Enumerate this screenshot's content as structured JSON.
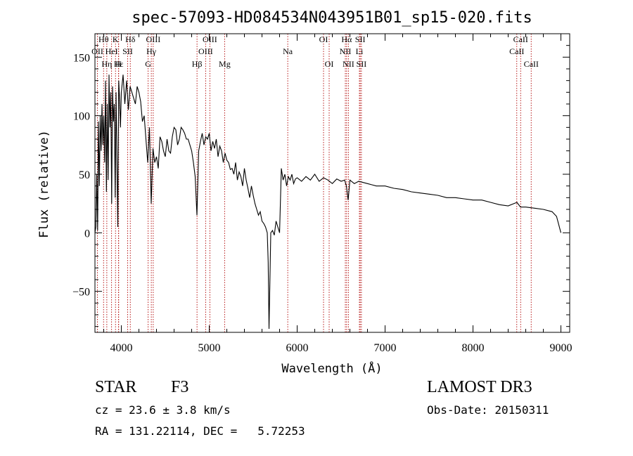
{
  "chart_data": {
    "type": "line",
    "title": "spec-57093-HD084534N043951B01_sp15-020.fits",
    "xlabel": "Wavelength (Å)",
    "ylabel": "Flux (relative)",
    "xlim": [
      3700,
      9100
    ],
    "ylim": [
      -85,
      170
    ],
    "x_ticks": [
      4000,
      5000,
      6000,
      7000,
      8000,
      9000
    ],
    "y_ticks": [
      -50,
      0,
      50,
      100,
      150
    ],
    "x_tick_labels": [
      "4000",
      "5000",
      "6000",
      "7000",
      "8000",
      "9000"
    ],
    "y_tick_labels": [
      "−50",
      "0",
      "50",
      "100",
      "150"
    ],
    "series": [
      {
        "x": [
          3700,
          3710,
          3720,
          3730,
          3740,
          3750,
          3760,
          3770,
          3780,
          3790,
          3800,
          3810,
          3820,
          3830,
          3840,
          3850,
          3860,
          3870,
          3880,
          3890,
          3900,
          3910,
          3920,
          3930,
          3940,
          3950,
          3960,
          3970,
          3980,
          3990,
          4000,
          4020,
          4040,
          4060,
          4080,
          4100,
          4120,
          4140,
          4160,
          4180,
          4200,
          4220,
          4240,
          4260,
          4280,
          4300,
          4320,
          4340,
          4360,
          4380,
          4400,
          4420,
          4440,
          4460,
          4480,
          4500,
          4520,
          4540,
          4560,
          4580,
          4600,
          4620,
          4640,
          4660,
          4680,
          4700,
          4720,
          4740,
          4760,
          4780,
          4800,
          4820,
          4840,
          4860,
          4880,
          4900,
          4920,
          4940,
          4960,
          4980,
          5000,
          5020,
          5040,
          5060,
          5080,
          5100,
          5120,
          5140,
          5160,
          5180,
          5200,
          5220,
          5240,
          5260,
          5280,
          5300,
          5320,
          5340,
          5360,
          5380,
          5400,
          5420,
          5440,
          5460,
          5480,
          5500,
          5520,
          5540,
          5560,
          5580,
          5600,
          5620,
          5640,
          5660,
          5670,
          5680,
          5690,
          5700,
          5720,
          5740,
          5760,
          5780,
          5800,
          5820,
          5840,
          5860,
          5880,
          5900,
          5920,
          5940,
          5960,
          5980,
          6000,
          6050,
          6100,
          6150,
          6200,
          6250,
          6300,
          6350,
          6400,
          6450,
          6500,
          6540,
          6560,
          6580,
          6600,
          6650,
          6700,
          6750,
          6800,
          6850,
          6900,
          6950,
          7000,
          7100,
          7200,
          7300,
          7400,
          7500,
          7600,
          7700,
          7800,
          7900,
          8000,
          8100,
          8200,
          8300,
          8400,
          8500,
          8540,
          8600,
          8700,
          8800,
          8900,
          8950,
          9000
        ],
        "y": [
          0,
          5,
          50,
          2,
          95,
          40,
          100,
          70,
          110,
          75,
          100,
          60,
          130,
          35,
          110,
          45,
          135,
          90,
          120,
          25,
          125,
          95,
          110,
          30,
          120,
          60,
          5,
          130,
          115,
          90,
          120,
          135,
          110,
          130,
          105,
          125,
          120,
          115,
          110,
          125,
          120,
          112,
          95,
          100,
          80,
          60,
          90,
          25,
          72,
          60,
          65,
          55,
          82,
          78,
          70,
          65,
          80,
          70,
          68,
          82,
          90,
          88,
          75,
          80,
          90,
          88,
          85,
          80,
          80,
          75,
          70,
          60,
          48,
          15,
          70,
          78,
          85,
          75,
          82,
          80,
          85,
          70,
          78,
          72,
          80,
          65,
          74,
          70,
          60,
          68,
          62,
          60,
          54,
          55,
          50,
          60,
          45,
          52,
          48,
          40,
          55,
          45,
          38,
          30,
          40,
          32,
          25,
          20,
          15,
          18,
          10,
          8,
          5,
          0,
          -25,
          -82,
          -40,
          0,
          2,
          -2,
          10,
          5,
          0,
          55,
          45,
          50,
          40,
          48,
          45,
          50,
          42,
          46,
          47,
          44,
          48,
          45,
          50,
          44,
          47,
          45,
          42,
          46,
          44,
          45,
          40,
          28,
          45,
          42,
          44,
          43,
          42,
          41,
          40,
          40,
          40,
          38,
          37,
          35,
          34,
          33,
          32,
          30,
          30,
          29,
          28,
          28,
          26,
          24,
          23,
          26,
          22,
          22,
          21,
          20,
          18,
          14,
          0
        ]
      }
    ],
    "lines": [
      {
        "label": "Hθ",
        "x": 3798,
        "row": 0
      },
      {
        "label": "OII",
        "x": 3728,
        "row": 1
      },
      {
        "label": "Hη",
        "x": 3835,
        "row": 2
      },
      {
        "label": "K",
        "x": 3934,
        "row": 0
      },
      {
        "label": "HeI",
        "x": 3889,
        "row": 1
      },
      {
        "label": "Hε",
        "x": 3970,
        "row": 2
      },
      {
        "label": "Hδ",
        "x": 4102,
        "row": 0
      },
      {
        "label": "SII",
        "x": 4072,
        "row": 1
      },
      {
        "label": "H",
        "x": 3968,
        "row": 2
      },
      {
        "label": "OIII",
        "x": 4363,
        "row": 0
      },
      {
        "label": "Hγ",
        "x": 4341,
        "row": 1
      },
      {
        "label": "G",
        "x": 4305,
        "row": 2
      },
      {
        "label": "OIII",
        "x": 5007,
        "row": 0
      },
      {
        "label": "OIII",
        "x": 4959,
        "row": 1
      },
      {
        "label": "Hβ",
        "x": 4861,
        "row": 2
      },
      {
        "label": "Mg",
        "x": 5175,
        "row": 2
      },
      {
        "label": "Na",
        "x": 5893,
        "row": 1
      },
      {
        "label": "OI",
        "x": 6300,
        "row": 0
      },
      {
        "label": "OI",
        "x": 6364,
        "row": 2
      },
      {
        "label": "Hα",
        "x": 6563,
        "row": 0
      },
      {
        "label": "NII",
        "x": 6548,
        "row": 1
      },
      {
        "label": "NII",
        "x": 6583,
        "row": 2
      },
      {
        "label": "SII",
        "x": 6717,
        "row": 0
      },
      {
        "label": "Li",
        "x": 6708,
        "row": 1
      },
      {
        "label": "SII",
        "x": 6731,
        "row": 2
      },
      {
        "label": "CaII",
        "x": 8542,
        "row": 0
      },
      {
        "label": "CaII",
        "x": 8498,
        "row": 1
      },
      {
        "label": "CaII",
        "x": 8662,
        "row": 2
      }
    ],
    "grid": false,
    "legend": "none"
  },
  "info": {
    "class": "STAR",
    "subclass": "F3",
    "survey": "LAMOST DR3",
    "cz": "cz = 23.6 ± 3.8 km/s",
    "obs_date": "Obs-Date: 20150311",
    "coords": "RA = 131.22114, DEC =   5.72253"
  },
  "colors": {
    "spectrum": "#000000",
    "line_markers": "#b00000",
    "axes": "#000000"
  }
}
